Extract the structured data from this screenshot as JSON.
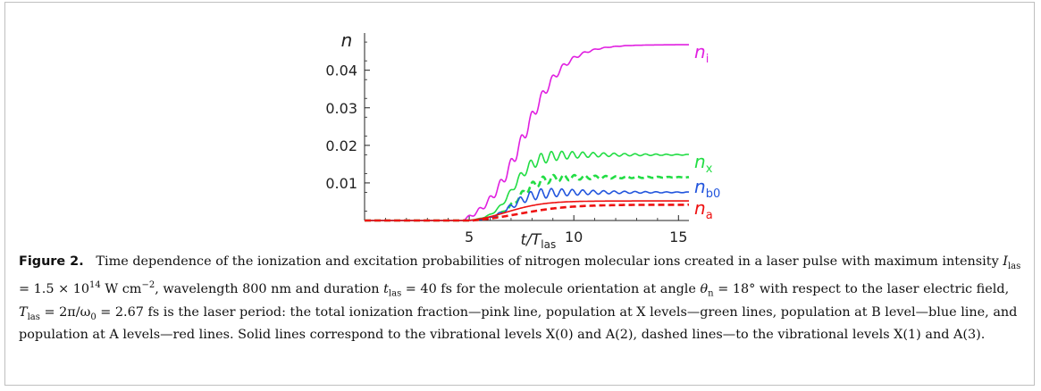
{
  "figure": {
    "chart_data": {
      "type": "line",
      "ylabel": "n",
      "xlabel_main": "t/T",
      "xlabel_sub": "las",
      "xlim": [
        0,
        15.5
      ],
      "ylim": [
        0,
        0.048
      ],
      "x_ticks": [
        5,
        10,
        15
      ],
      "y_ticks": [
        0.01,
        0.02,
        0.03,
        0.04
      ],
      "y_tick_labels": [
        "0.01",
        "0.02",
        "0.03",
        "0.04"
      ],
      "series": [
        {
          "name": "n_i",
          "label_main": "n",
          "label_sub": "i",
          "color": "#e020e0",
          "dash": "solid",
          "shape": "steps",
          "onset": 4.6,
          "rise_center": 7.6,
          "rise_width": 0.95,
          "final": 0.0468,
          "ripple": 0
        },
        {
          "name": "n_x (solid)",
          "label_main": "n",
          "label_sub": "x",
          "color": "#22dd44",
          "dash": "solid",
          "shape": "ripple",
          "onset": 4.8,
          "rise_center": 7.1,
          "rise_width": 0.5,
          "final": 0.0175,
          "ripple": 0.0016
        },
        {
          "name": "n_x (dashed)",
          "label_main": "",
          "label_sub": "",
          "color": "#22dd44",
          "dash": "dashed",
          "shape": "ripple",
          "onset": 4.9,
          "rise_center": 7.3,
          "rise_width": 0.5,
          "final": 0.0115,
          "ripple": 0.0012
        },
        {
          "name": "n_b0",
          "label_main": "n",
          "label_sub": "b0",
          "color": "#2255dd",
          "dash": "solid",
          "shape": "ripple",
          "onset": 4.8,
          "rise_center": 7.0,
          "rise_width": 0.5,
          "final": 0.0075,
          "ripple": 0.0014
        },
        {
          "name": "n_a (solid)",
          "label_main": "n",
          "label_sub": "a",
          "color": "#ee1111",
          "dash": "solid",
          "shape": "saturate",
          "onset": 5.0,
          "rise_center": 6.8,
          "rise_width": 0.9,
          "final": 0.0052,
          "ripple": 0
        },
        {
          "name": "n_a (dashed)",
          "label_main": "",
          "label_sub": "",
          "color": "#ee1111",
          "dash": "dashed",
          "shape": "saturate",
          "onset": 5.1,
          "rise_center": 7.4,
          "rise_width": 1.2,
          "final": 0.0042,
          "ripple": 0
        }
      ]
    },
    "caption": {
      "fig_label": "Figure 2.",
      "t1": "Time dependence of the ionization and excitation probabilities of nitrogen molecular ions created in a laser pulse with maximum intensity ",
      "I_sym": "I",
      "las_sub": "las",
      "t2": " = 1.5 × 10",
      "exp14": "14",
      "t3": " W cm",
      "expm2": "−2",
      "t4": ", wavelength 800 nm and duration ",
      "t_sym": "t",
      "t5": " = 40 fs for the molecule orientation at angle ",
      "theta_sym": "θ",
      "n_sub": "n",
      "t6": " = 18° with respect to the laser electric field, ",
      "T_sym": "T",
      "t7": " = 2π/ω",
      "zero_sub": "0",
      "t8": " = 2.67 fs is the laser period: the total ionization fraction—pink line, population at X levels—green lines, population at B level—blue line, and population at A levels—red lines. Solid lines correspond to the vibrational levels X(0) and A(2), dashed lines—to the vibrational levels X(1) and A(3)."
    }
  }
}
